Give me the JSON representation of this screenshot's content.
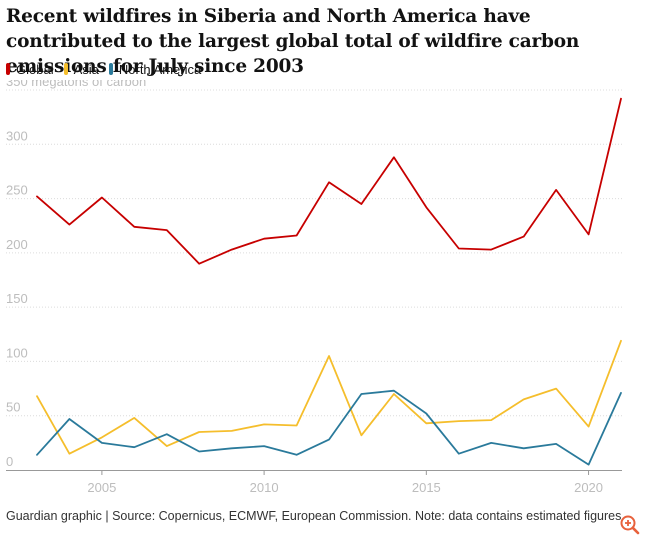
{
  "header": {
    "title": "Recent wildfires in Siberia and North America have contributed to the largest global total of wildfire carbon emissions for July since 2003"
  },
  "footer": {
    "credit": "Guardian graphic | Source: Copernicus, ECMWF, European Commission. Note: data contains estimated figures"
  },
  "controls": {
    "zoom_icon": "zoom-in-icon"
  },
  "colors": {
    "global": "#c70000",
    "asia": "#f5be2c",
    "north_america": "#2a7a9b"
  },
  "chart_data": {
    "type": "line",
    "title": "Recent wildfires in Siberia and North America have contributed to the largest global total of wildfire carbon emissions for July since 2003",
    "ylabel": "350 megatons of carbon",
    "xlabel": "",
    "x": [
      2003,
      2004,
      2005,
      2006,
      2007,
      2008,
      2009,
      2010,
      2011,
      2012,
      2013,
      2014,
      2015,
      2016,
      2017,
      2018,
      2019,
      2020,
      2021
    ],
    "ylim": [
      0,
      350
    ],
    "xlim": [
      2003,
      2021
    ],
    "yticks": [
      0,
      50,
      100,
      150,
      200,
      250,
      300,
      350
    ],
    "yticklabels": [
      "0",
      "50",
      "100",
      "150",
      "200",
      "250",
      "300",
      "350 megatons of carbon"
    ],
    "xticks": [
      2005,
      2010,
      2015,
      2020
    ],
    "xticklabels": [
      "2005",
      "2010",
      "2015",
      "2020"
    ],
    "grid": true,
    "legend_position": "top-left",
    "series": [
      {
        "name": "Global",
        "color": "#c70000",
        "values": [
          252,
          226,
          251,
          224,
          221,
          190,
          203,
          213,
          216,
          265,
          245,
          288,
          242,
          204,
          203,
          215,
          258,
          217,
          342
        ]
      },
      {
        "name": "Asia",
        "color": "#f5be2c",
        "values": [
          68,
          15,
          30,
          48,
          22,
          35,
          36,
          42,
          41,
          105,
          32,
          70,
          43,
          45,
          46,
          65,
          75,
          40,
          119
        ]
      },
      {
        "name": "North America",
        "color": "#2a7a9b",
        "values": [
          14,
          47,
          25,
          21,
          33,
          17,
          20,
          22,
          14,
          28,
          70,
          73,
          52,
          15,
          25,
          20,
          24,
          5,
          71
        ]
      }
    ]
  }
}
